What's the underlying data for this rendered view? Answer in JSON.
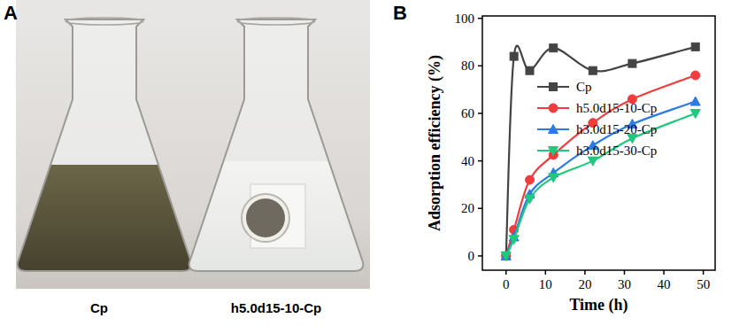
{
  "panel_labels": [
    "A",
    "B"
  ],
  "photo_captions": [
    "Cp",
    "h5.0d15-10-Cp"
  ],
  "chart_data": {
    "type": "line",
    "x_label": "Time (h)",
    "y_label": "Adsorption efficiency (%)",
    "x": [
      0,
      2,
      6,
      12,
      22,
      32,
      48
    ],
    "series": [
      {
        "name": "Cp",
        "color": "#444444",
        "marker": "square",
        "line_style": "smooth",
        "values": [
          0,
          84,
          78,
          87.5,
          78,
          81,
          88
        ]
      },
      {
        "name": "h5.0d15-10-Cp",
        "color": "#f03c3c",
        "marker": "circle",
        "line_style": "smooth",
        "values": [
          0,
          11,
          32,
          42.5,
          56,
          66,
          76
        ]
      },
      {
        "name": "h3.0d15-20-Cp",
        "color": "#2b7be4",
        "marker": "triangle-up",
        "line_style": "smooth",
        "values": [
          0,
          8,
          26,
          35,
          46.5,
          55.5,
          65
        ]
      },
      {
        "name": "h3.0d15-30-Cp",
        "color": "#1fc87c",
        "marker": "triangle-down",
        "line_style": "smooth",
        "values": [
          0,
          7,
          24,
          33,
          40,
          49.5,
          60
        ]
      }
    ],
    "xlim": [
      -6,
      53
    ],
    "ylim": [
      -6,
      101
    ],
    "xticks": [
      0,
      10,
      20,
      30,
      40,
      50
    ],
    "yticks": [
      0,
      20,
      40,
      60,
      80,
      100
    ],
    "grid": false,
    "legend": "right"
  }
}
